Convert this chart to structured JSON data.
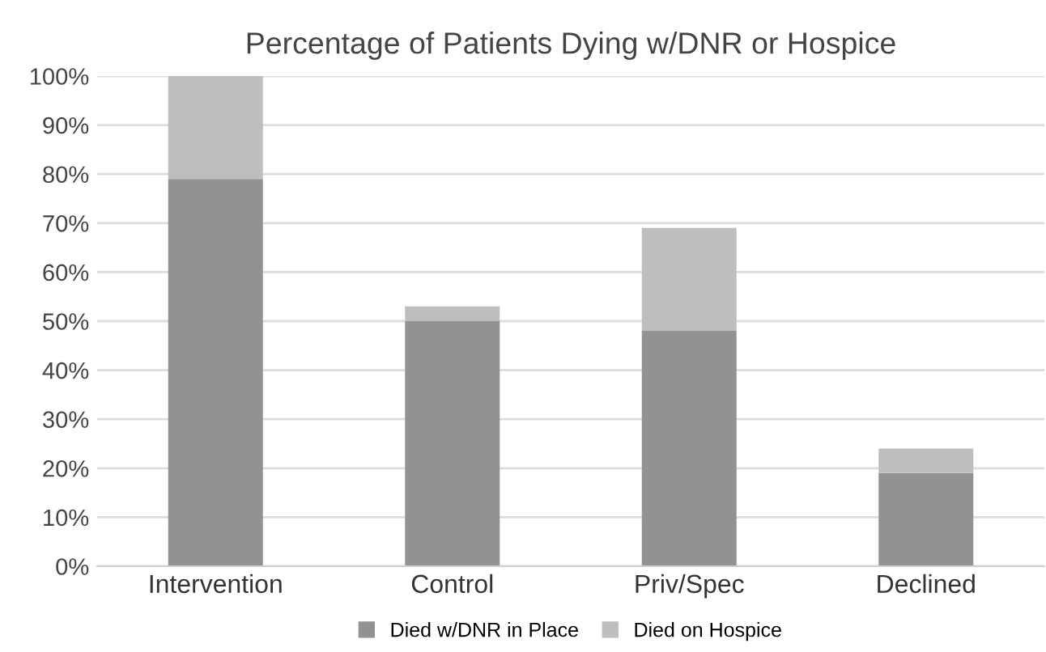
{
  "chart_data": {
    "type": "bar",
    "stacked": true,
    "title": "Percentage of Patients Dying w/DNR or Hospice",
    "categories": [
      "Intervention",
      "Control",
      "Priv/Spec",
      "Declined"
    ],
    "series": [
      {
        "name": "Died w/DNR in Place",
        "color": "#929292",
        "values": [
          79,
          50,
          48,
          19
        ]
      },
      {
        "name": "Died on Hospice",
        "color": "#bebebe",
        "values": [
          21,
          3,
          21,
          5
        ]
      }
    ],
    "ylim": [
      0,
      100
    ],
    "yticks": [
      {
        "value": 0,
        "label": "0%"
      },
      {
        "value": 10,
        "label": "10%"
      },
      {
        "value": 20,
        "label": "20%"
      },
      {
        "value": 30,
        "label": "30%"
      },
      {
        "value": 40,
        "label": "40%"
      },
      {
        "value": 50,
        "label": "50%"
      },
      {
        "value": 60,
        "label": "60%"
      },
      {
        "value": 70,
        "label": "70%"
      },
      {
        "value": 80,
        "label": "80%"
      },
      {
        "value": 90,
        "label": "90%"
      },
      {
        "value": 100,
        "label": "100%"
      }
    ],
    "grid": "y",
    "legend": "bottom"
  }
}
